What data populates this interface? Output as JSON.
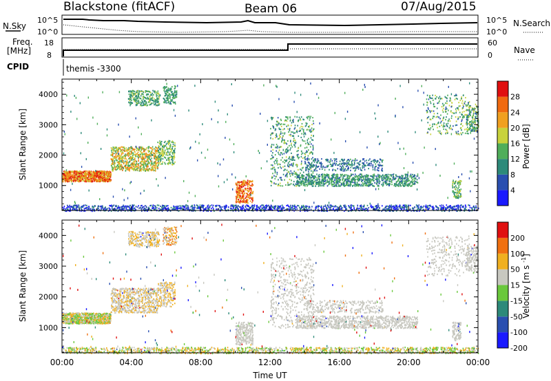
{
  "header": {
    "station": "Blackstone (fitACF)",
    "beam": "Beam 06",
    "date": "07/Aug/2015"
  },
  "panels": {
    "nsky_label": "N.Sky",
    "nsearch_label": "N.Search",
    "nsky_ticks": [
      "10^5",
      "10^0"
    ],
    "nsearch_ticks": [
      "10^5",
      "10^0"
    ],
    "freq_label_1": "Freq.",
    "freq_label_2": "[MHz]",
    "freq_ticks": [
      "18",
      "8"
    ],
    "nave_label": "Nave",
    "nave_ticks": [
      "60",
      "0"
    ],
    "cpid_label": "CPID",
    "cpid_value": "themis -3300"
  },
  "chart_data": [
    {
      "type": "heatmap",
      "name_printed": "",
      "ylabel": "Slant Range [km]",
      "xlabel": "Time UT",
      "ylim": [
        180,
        4500
      ],
      "yticks": [
        1000,
        2000,
        3000,
        4000
      ],
      "xticks": [
        "00:00",
        "04:00",
        "08:00",
        "12:00",
        "16:00",
        "20:00",
        "00:00"
      ],
      "colorbar": {
        "label": "Power [dB]",
        "ticks": [
          4,
          8,
          12,
          16,
          20,
          24,
          28
        ],
        "colors": [
          "#1a1aff",
          "#2a4fb0",
          "#2d8a7a",
          "#4fae5a",
          "#c8d23c",
          "#f0a020",
          "#f06a10",
          "#e01010"
        ]
      }
    },
    {
      "type": "heatmap",
      "ylabel": "Slant Range [km]",
      "xlabel": "Time UT",
      "ylim": [
        180,
        4500
      ],
      "yticks": [
        1000,
        2000,
        3000,
        4000
      ],
      "xticks": [
        "00:00",
        "04:00",
        "08:00",
        "12:00",
        "16:00",
        "20:00",
        "00:00"
      ],
      "colorbar": {
        "label": "Velocity [m s^-1]",
        "ticks": [
          200,
          100,
          50,
          15,
          -15,
          -50,
          -100,
          -200
        ],
        "colors": [
          "#1a1aff",
          "#2a4fb0",
          "#2d8a7a",
          "#6ac83c",
          "#c8c8c0",
          "#f0b020",
          "#f07010",
          "#e01010"
        ]
      }
    }
  ]
}
